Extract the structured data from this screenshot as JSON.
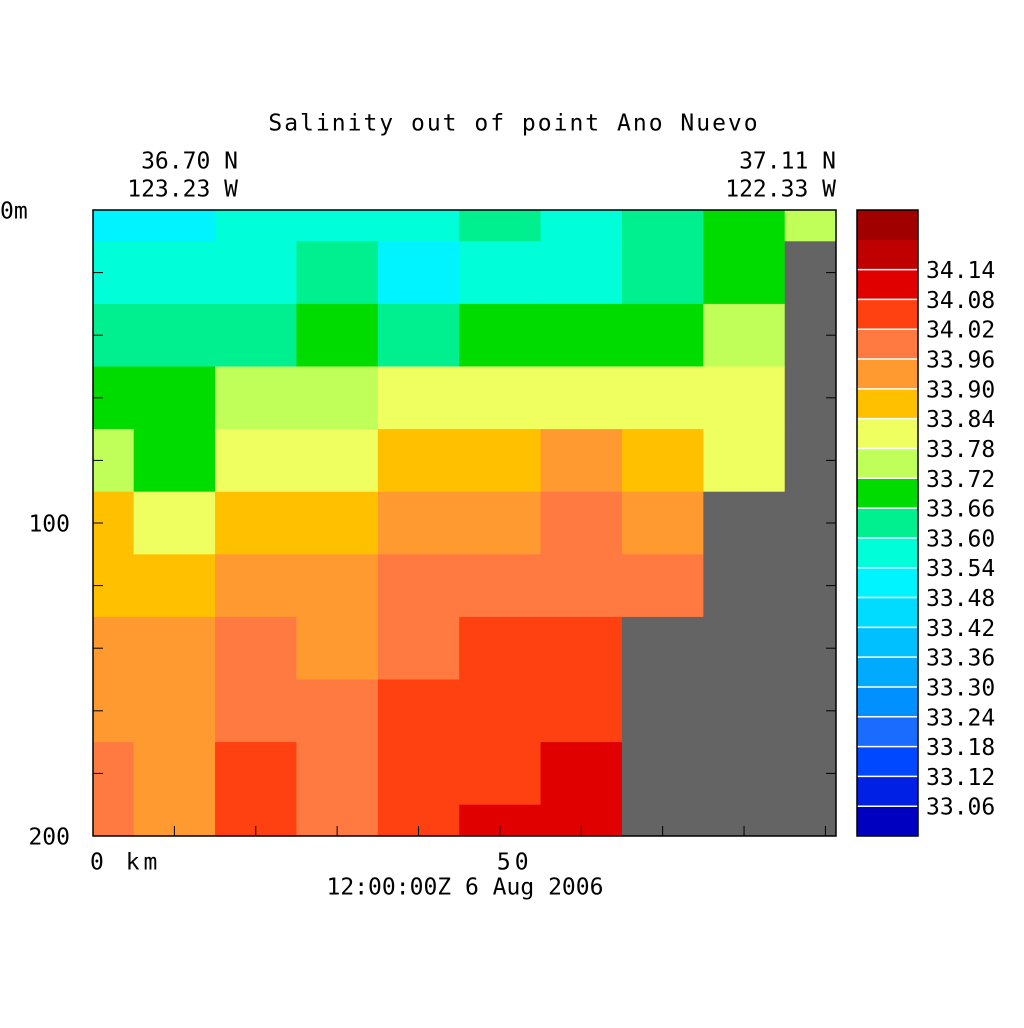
{
  "chart_data": {
    "type": "contour",
    "title": "Salinity out of point Ano Nuevo",
    "corner_labels": {
      "left_lat": "36.70 N",
      "left_lon": "123.23 W",
      "right_lat": "37.11 N",
      "right_lon": "122.33 W"
    },
    "time_label": "12:00:00Z   6 Aug 2006",
    "x": [
      0,
      10,
      20,
      30,
      40,
      50,
      60,
      70,
      80,
      90
    ],
    "depth": [
      0,
      20,
      40,
      60,
      80,
      100,
      120,
      140,
      160,
      180,
      200
    ],
    "z": [
      [
        33.51,
        33.51,
        33.57,
        33.57,
        33.57,
        33.63,
        33.57,
        33.63,
        33.69,
        33.75
      ],
      [
        33.57,
        33.57,
        33.57,
        33.63,
        33.51,
        33.57,
        33.57,
        33.63,
        33.69,
        null
      ],
      [
        33.63,
        33.63,
        33.63,
        33.69,
        33.63,
        33.69,
        33.69,
        33.69,
        33.75,
        null
      ],
      [
        33.69,
        33.69,
        33.75,
        33.75,
        33.81,
        33.81,
        33.81,
        33.81,
        33.81,
        null
      ],
      [
        33.75,
        33.69,
        33.81,
        33.81,
        33.87,
        33.87,
        33.93,
        33.87,
        33.81,
        null
      ],
      [
        33.87,
        33.81,
        33.87,
        33.87,
        33.93,
        33.93,
        33.99,
        33.93,
        null,
        null
      ],
      [
        33.87,
        33.87,
        33.93,
        33.93,
        33.99,
        33.99,
        33.99,
        33.99,
        null,
        null
      ],
      [
        33.93,
        33.93,
        33.99,
        33.93,
        33.99,
        34.05,
        34.05,
        null,
        null,
        null
      ],
      [
        33.93,
        33.93,
        33.99,
        33.99,
        34.05,
        34.05,
        34.05,
        null,
        null,
        null
      ],
      [
        33.99,
        33.93,
        34.05,
        33.99,
        34.05,
        34.05,
        34.11,
        null,
        null,
        null
      ],
      [
        33.99,
        33.93,
        34.05,
        33.99,
        34.05,
        34.11,
        34.11,
        null,
        null,
        null
      ]
    ],
    "xlim": [
      0,
      91.3
    ],
    "ylim": [
      0,
      200
    ],
    "y_inverted": true,
    "xticks": [
      {
        "value": 0,
        "label": "0 km"
      },
      50
    ],
    "xminor": [
      10,
      20,
      30,
      40,
      60,
      70,
      80,
      90
    ],
    "yticks": [
      {
        "value": 0,
        "label": "0m"
      },
      100,
      200
    ],
    "yminor": [
      20,
      40,
      60,
      80,
      120,
      140,
      160,
      180
    ],
    "land_color": "#646464",
    "levels": [
      33.06,
      33.12,
      33.18,
      33.24,
      {
        "value": 33.3,
        "label": "33.30"
      },
      33.36,
      33.42,
      33.48,
      33.54,
      {
        "value": 33.6,
        "label": "33.60"
      },
      33.66,
      33.72,
      33.78,
      33.84,
      {
        "value": 33.9,
        "label": "33.90"
      },
      33.96,
      34.02,
      34.08,
      34.14
    ],
    "colors": [
      "#0000c0",
      "#0020e6",
      "#0048ff",
      "#1a6cff",
      "#0090ff",
      "#00aaff",
      "#00c0ff",
      "#00dcff",
      "#00f4ff",
      "#00ffd8",
      "#00f090",
      "#00dc00",
      "#c0ff5a",
      "#f0ff60",
      "#ffc000",
      "#ff9a30",
      "#ff7a40",
      "#ff4010",
      "#e00000",
      "#c00000",
      "#a00000"
    ]
  }
}
